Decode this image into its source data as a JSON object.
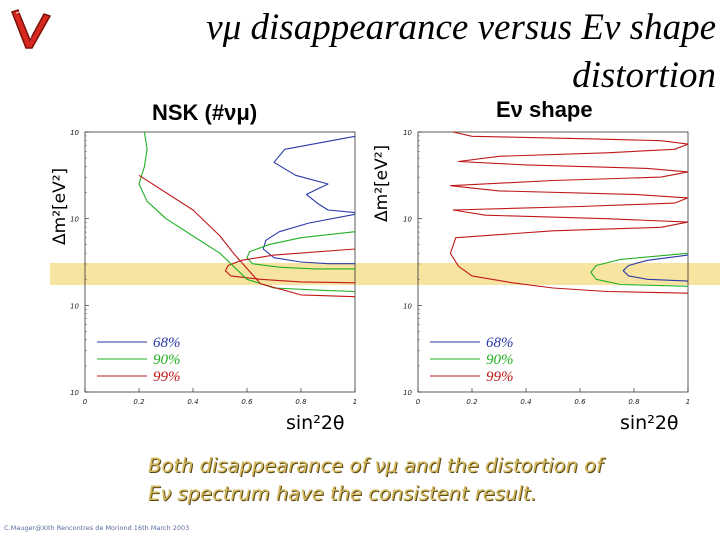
{
  "title": {
    "line1": "νμ disappearance versus Eν shape",
    "line2": "distortion"
  },
  "footer": {
    "text_line1": "Both disappearance of νμ and the distortion of",
    "text_line2": "Eν spectrum have the consistent result."
  },
  "credit": "C.Mauger@XIth Rencontres de Moriond 16th March 2003",
  "colors": {
    "band": "#f7df90",
    "footer_text": "#d4b85c",
    "c68": "#2a3aa8",
    "c90": "#22b022",
    "c99": "#c01818"
  },
  "chart_data": [
    {
      "id": "left",
      "type": "line",
      "title": "NSK (#νμ)",
      "xlabel": "sin²2θ",
      "ylabel": "Δm²[eV²]",
      "xlim": [
        0,
        1
      ],
      "ylim": [
        -4,
        -1
      ],
      "yscale": "log",
      "x_ticks": [
        "0",
        "0.2",
        "0.4",
        "0.6",
        "0.8",
        "1"
      ],
      "y_ticks": [
        "10",
        "10",
        "10",
        "10"
      ],
      "legend": [
        "68%",
        "90%",
        "99%"
      ],
      "series": [
        {
          "name": "68%",
          "x": [
            1.0,
            0.83,
            0.72,
            0.67,
            0.66,
            0.7,
            0.8,
            0.9,
            1.0
          ],
          "y": [
            -1.95,
            -2.05,
            -2.15,
            -2.25,
            -2.35,
            -2.45,
            -2.5,
            -2.52,
            -2.52
          ]
        },
        {
          "name": "90%",
          "x": [
            1.0,
            0.8,
            0.68,
            0.61,
            0.6,
            0.62,
            0.72,
            0.85,
            1.0
          ],
          "y": [
            -2.15,
            -2.22,
            -2.3,
            -2.38,
            -2.45,
            -2.52,
            -2.56,
            -2.58,
            -2.58
          ]
        },
        {
          "name": "99%",
          "x": [
            1.0,
            0.7,
            0.58,
            0.53,
            0.52,
            0.54,
            0.65,
            0.8,
            1.0
          ],
          "y": [
            -2.35,
            -2.42,
            -2.48,
            -2.54,
            -2.6,
            -2.66,
            -2.7,
            -2.73,
            -2.74
          ]
        },
        {
          "name": "68%",
          "x": [
            1.0,
            0.74,
            0.7,
            0.78,
            0.9,
            0.82,
            0.86,
            0.9,
            1.0
          ],
          "y": [
            -1.05,
            -1.2,
            -1.35,
            -1.5,
            -1.6,
            -1.72,
            -1.82,
            -1.9,
            -1.93
          ]
        },
        {
          "name": "90%",
          "x": [
            0.22,
            0.23,
            0.22,
            0.2,
            0.23,
            0.3,
            0.4,
            0.5,
            0.55,
            0.6,
            0.7,
            0.9,
            1.0
          ],
          "y": [
            -1.0,
            -1.2,
            -1.4,
            -1.6,
            -1.8,
            -2.0,
            -2.2,
            -2.4,
            -2.55,
            -2.7,
            -2.8,
            -2.83,
            -2.84
          ]
        },
        {
          "name": "99%",
          "x": [
            0.2,
            0.4,
            0.5,
            0.55,
            0.65,
            0.8,
            1.0
          ],
          "y": [
            -1.5,
            -1.9,
            -2.2,
            -2.4,
            -2.75,
            -2.88,
            -2.9
          ]
        }
      ]
    },
    {
      "id": "right",
      "type": "line",
      "title": "Eν shape",
      "xlabel": "sin²2θ",
      "ylabel": "Δm²[eV²]",
      "xlim": [
        0,
        1
      ],
      "ylim": [
        -4,
        -1
      ],
      "yscale": "log",
      "x_ticks": [
        "0",
        "0.2",
        "0.4",
        "0.6",
        "0.8",
        "1"
      ],
      "y_ticks": [
        "10",
        "10",
        "10",
        "10"
      ],
      "legend": [
        "68%",
        "90%",
        "99%"
      ],
      "series": [
        {
          "name": "68%",
          "x": [
            1.0,
            0.85,
            0.78,
            0.76,
            0.78,
            0.85,
            1.0
          ],
          "y": [
            -2.42,
            -2.48,
            -2.54,
            -2.6,
            -2.66,
            -2.7,
            -2.72
          ]
        },
        {
          "name": "90%",
          "x": [
            1.0,
            0.75,
            0.66,
            0.64,
            0.66,
            0.75,
            1.0
          ],
          "y": [
            -2.4,
            -2.47,
            -2.54,
            -2.62,
            -2.7,
            -2.76,
            -2.78
          ]
        },
        {
          "name": "99%",
          "x": [
            0.13,
            0.2,
            0.65,
            0.9,
            1.0,
            0.95,
            0.7,
            0.3,
            0.15,
            0.4,
            0.85,
            1.0,
            0.9,
            0.5,
            0.12,
            0.3,
            0.8,
            1.0,
            0.95,
            0.6,
            0.13,
            0.25,
            0.7,
            1.0,
            0.9,
            0.5,
            0.14,
            0.12,
            0.15,
            0.2,
            0.35,
            0.5,
            0.7,
            1.0
          ],
          "y": [
            -1.0,
            -1.05,
            -1.08,
            -1.1,
            -1.14,
            -1.2,
            -1.24,
            -1.28,
            -1.34,
            -1.38,
            -1.42,
            -1.46,
            -1.52,
            -1.56,
            -1.62,
            -1.68,
            -1.72,
            -1.76,
            -1.82,
            -1.86,
            -1.9,
            -1.96,
            -2.0,
            -2.04,
            -2.1,
            -2.14,
            -2.22,
            -2.4,
            -2.55,
            -2.66,
            -2.74,
            -2.8,
            -2.84,
            -2.86
          ]
        }
      ]
    }
  ]
}
